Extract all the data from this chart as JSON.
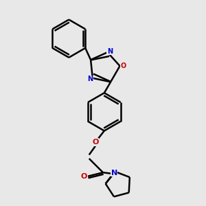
{
  "background_color": "#e8e8e8",
  "line_color": "#000000",
  "N_color": "#0000cc",
  "O_color": "#cc0000",
  "bond_lw": 1.8,
  "figsize": [
    3.0,
    3.0
  ],
  "dpi": 100,
  "xlim": [
    -2.5,
    3.5
  ],
  "ylim": [
    -4.5,
    3.5
  ]
}
